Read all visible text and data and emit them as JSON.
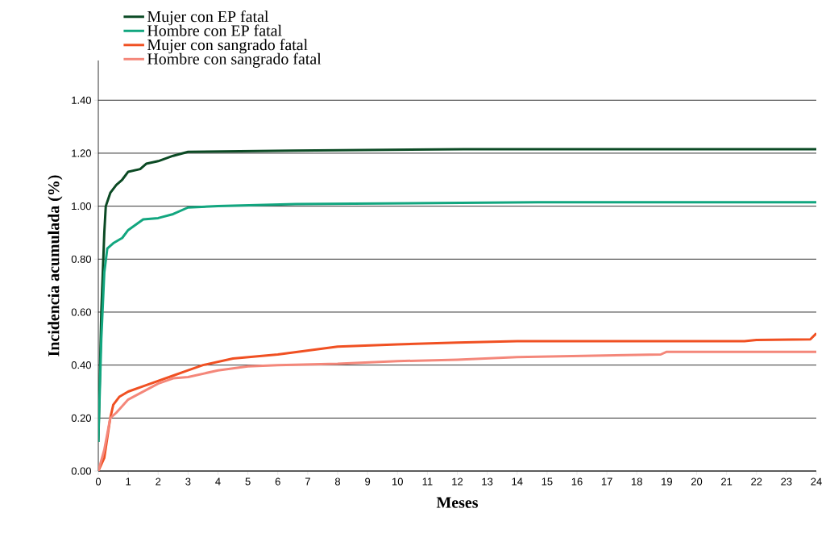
{
  "chart_data": {
    "type": "line",
    "xlabel": "Meses",
    "ylabel": "Incidencia acumulada (%)",
    "xlim": [
      0,
      24
    ],
    "ylim": [
      0,
      1.55
    ],
    "xticks": [
      0,
      1,
      2,
      3,
      4,
      5,
      6,
      7,
      8,
      9,
      10,
      11,
      12,
      13,
      14,
      15,
      16,
      17,
      18,
      19,
      20,
      21,
      22,
      23,
      24
    ],
    "yticks": [
      {
        "value": 0,
        "label": "0.00"
      },
      {
        "value": 0.2,
        "label": "0.20"
      },
      {
        "value": 0.4,
        "label": "0.40"
      },
      {
        "value": 0.6,
        "label": "0.60"
      },
      {
        "value": 0.8,
        "label": "0.80"
      },
      {
        "value": 1.0,
        "label": "1.00"
      },
      {
        "value": 1.2,
        "label": "1.20"
      },
      {
        "value": 1.4,
        "label": "1.40"
      }
    ],
    "grid": "y",
    "legend": "top left",
    "marker": "none",
    "line_style": "solid",
    "series": [
      {
        "name": "Mujer con EP fatal",
        "color": "#0b4a24",
        "x": [
          0,
          0.1,
          0.2,
          0.25,
          0.4,
          0.6,
          0.8,
          1.0,
          1.4,
          1.6,
          2.0,
          2.5,
          3.0,
          6.5,
          12.2,
          24
        ],
        "values": [
          0.11,
          0.6,
          0.9,
          1.0,
          1.05,
          1.08,
          1.1,
          1.13,
          1.14,
          1.16,
          1.17,
          1.19,
          1.205,
          1.21,
          1.215,
          1.215
        ]
      },
      {
        "name": "Hombre con EP fatal",
        "color": "#12a67f",
        "x": [
          0,
          0.1,
          0.2,
          0.3,
          0.5,
          0.8,
          1.0,
          1.5,
          2.0,
          2.5,
          3.0,
          4.0,
          6.6,
          14.7,
          24
        ],
        "values": [
          0.11,
          0.5,
          0.75,
          0.84,
          0.86,
          0.88,
          0.91,
          0.95,
          0.955,
          0.97,
          0.995,
          1.0,
          1.008,
          1.015,
          1.015
        ]
      },
      {
        "name": "Mujer con sangrado fatal",
        "color": "#f05022",
        "x": [
          0,
          0.2,
          0.4,
          0.5,
          0.7,
          1.0,
          1.5,
          2.0,
          2.5,
          3.0,
          3.5,
          4.5,
          6,
          7,
          8,
          10,
          12,
          14,
          21.6,
          22,
          23.8,
          24
        ],
        "values": [
          0,
          0.05,
          0.2,
          0.25,
          0.28,
          0.3,
          0.32,
          0.34,
          0.36,
          0.38,
          0.4,
          0.425,
          0.44,
          0.455,
          0.47,
          0.478,
          0.485,
          0.49,
          0.49,
          0.495,
          0.497,
          0.52
        ]
      },
      {
        "name": "Hombre con sangrado fatal",
        "color": "#f4877a",
        "x": [
          0,
          0.2,
          0.4,
          0.6,
          1.0,
          1.5,
          2.0,
          2.5,
          3.0,
          4.0,
          5,
          6,
          8,
          10,
          12,
          14,
          18.8,
          19,
          24
        ],
        "values": [
          0,
          0.08,
          0.2,
          0.22,
          0.27,
          0.3,
          0.33,
          0.35,
          0.355,
          0.38,
          0.395,
          0.4,
          0.405,
          0.415,
          0.42,
          0.43,
          0.44,
          0.45,
          0.45
        ]
      }
    ]
  }
}
